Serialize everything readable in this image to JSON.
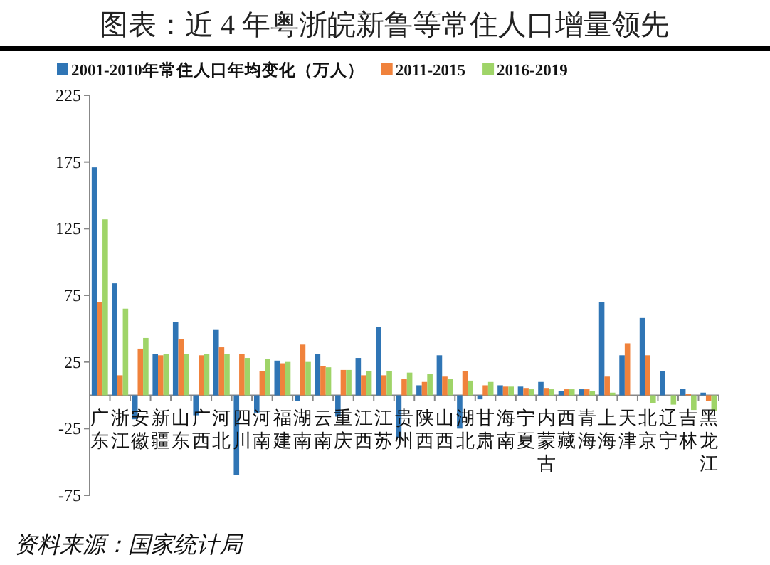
{
  "chart_data": {
    "type": "bar",
    "title": "图表：近 4 年粤浙皖新鲁等常住人口增量领先",
    "categories": [
      "广东",
      "浙江",
      "安徽",
      "新疆",
      "山东",
      "广西",
      "河北",
      "四川",
      "河南",
      "福建",
      "湖南",
      "云南",
      "重庆",
      "江西",
      "江苏",
      "贵州",
      "陕西",
      "山西",
      "湖北",
      "甘肃",
      "海南",
      "宁夏",
      "内蒙古",
      "西藏",
      "青海",
      "上海",
      "天津",
      "北京",
      "辽宁",
      "吉林",
      "黑龙江"
    ],
    "series": [
      {
        "name": "2001-2010年常住人口年均变化（万人）",
        "color": "#2f75b5",
        "values": [
          171,
          84,
          -18,
          31,
          55,
          -15,
          49,
          -60,
          -13,
          26,
          -4,
          31,
          -16,
          28,
          51,
          -32,
          7.5,
          30,
          -25,
          -3,
          7.5,
          6.5,
          10,
          3,
          4.5,
          70,
          30,
          58,
          18,
          5,
          2
        ]
      },
      {
        "name": "2011-2015",
        "color": "#f0823c",
        "values": [
          70,
          15,
          35,
          30,
          42,
          30,
          36,
          31,
          18,
          24,
          38,
          22,
          19,
          15,
          15,
          12,
          10,
          14,
          18,
          7.5,
          6.5,
          5.5,
          5.5,
          4.5,
          4.5,
          14,
          39,
          30,
          0,
          1,
          -4
        ]
      },
      {
        "name": "2016-2019",
        "color": "#9fd468",
        "values": [
          132,
          65,
          43,
          31,
          31,
          31,
          31,
          28,
          27,
          25,
          25,
          21,
          19,
          18,
          18,
          17,
          16,
          12,
          11,
          10,
          6.5,
          4.5,
          4.5,
          4.5,
          3,
          2,
          0,
          -6,
          -7,
          -11,
          -12
        ]
      }
    ],
    "ylim": [
      -75,
      225
    ],
    "yticks": [
      -75,
      -25,
      25,
      75,
      125,
      175,
      225
    ],
    "legend": "top",
    "annotations": [
      "资料来源：国家统计局"
    ]
  }
}
